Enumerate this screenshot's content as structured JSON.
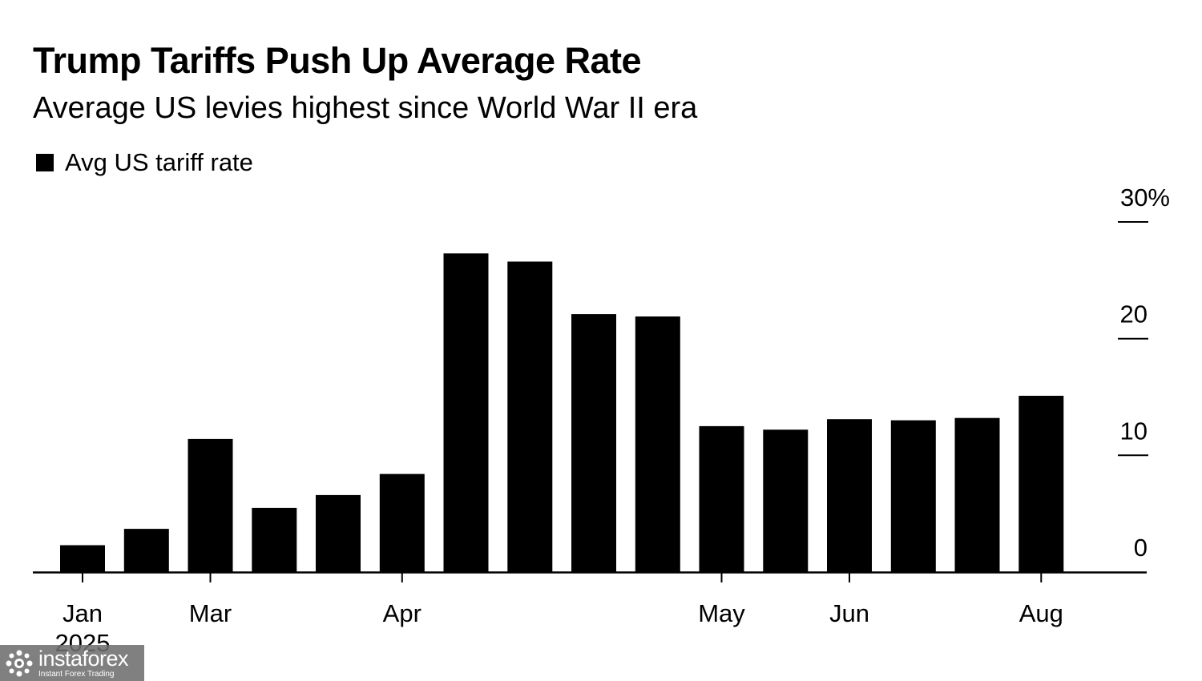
{
  "chart_data": {
    "type": "bar",
    "title": "Trump Tariffs Push Up Average Rate",
    "subtitle": "Average US levies highest since World War II era",
    "legend": [
      {
        "name": "Avg US tariff rate",
        "color": "#000000"
      }
    ],
    "series": [
      {
        "name": "Avg US tariff rate",
        "values": [
          2.3,
          3.7,
          11.4,
          5.5,
          6.6,
          8.4,
          27.3,
          26.6,
          22.1,
          21.9,
          12.5,
          12.2,
          13.1,
          13.0,
          13.2,
          15.1
        ]
      }
    ],
    "x_tick_labels": [
      {
        "index": 0,
        "label": "Jan",
        "sublabel": "2025"
      },
      {
        "index": 2,
        "label": "Mar"
      },
      {
        "index": 5,
        "label": "Apr"
      },
      {
        "index": 10,
        "label": "May"
      },
      {
        "index": 12,
        "label": "Jun"
      },
      {
        "index": 15,
        "label": "Aug"
      }
    ],
    "y_ticks": [
      0,
      10,
      20,
      30
    ],
    "y_tick_labels": [
      "0",
      "10",
      "20",
      "30%"
    ],
    "ylim": [
      0,
      30
    ],
    "xlabel": "",
    "ylabel": "",
    "grid": false,
    "y_axis_side": "right",
    "bar_color": "#000000"
  },
  "watermark": {
    "brand": "instaforex",
    "tagline": "Instant Forex Trading"
  }
}
